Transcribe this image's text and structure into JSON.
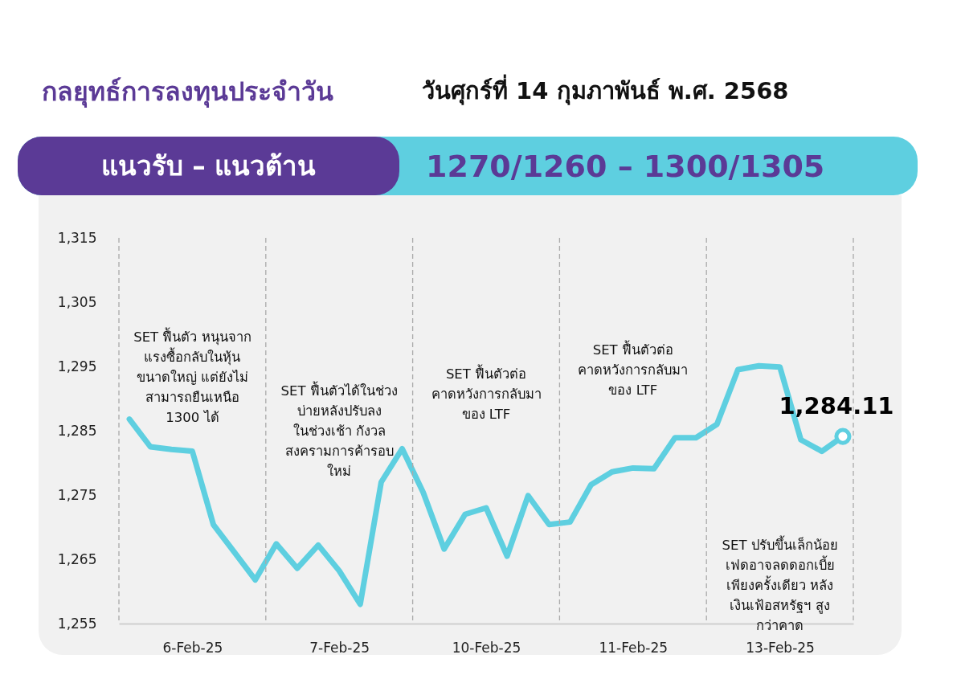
{
  "chart_data": {
    "type": "line",
    "title": "กลยุทธ์การลงทุนประจำวัน",
    "subtitle": "วันศุกร์ที่ 14 กุมภาพันธ์ พ.ศ. 2568",
    "categories": [
      null,
      null,
      null,
      "6-Feb-25",
      null,
      null,
      null,
      null,
      null,
      null,
      "7-Feb-25",
      null,
      null,
      null,
      null,
      null,
      null,
      "10-Feb-25",
      null,
      null,
      null,
      null,
      null,
      null,
      "11-Feb-25",
      null,
      null,
      null,
      null,
      null,
      null,
      "13-Feb-25",
      null,
      null,
      null
    ],
    "series": [
      {
        "color": "#5ecfe0",
        "values": [
          1286.8,
          1282.5,
          1282.1,
          1281.8,
          1270.4,
          1266.1,
          1261.8,
          1267.4,
          1263.6,
          1267.2,
          1263.2,
          1258.0,
          1277.0,
          1282.2,
          1275.4,
          1266.6,
          1272.0,
          1273.0,
          1265.5,
          1274.9,
          1270.4,
          1270.8,
          1276.6,
          1278.6,
          1279.2,
          1279.1,
          1283.9,
          1283.9,
          1286.0,
          1294.5,
          1295.1,
          1294.9,
          1283.6,
          1281.8,
          1284.11
        ]
      }
    ],
    "ylim": [
      1255,
      1315
    ],
    "yticks": [
      {
        "value": 1255,
        "label": "1,255"
      },
      {
        "value": 1265,
        "label": "1,265"
      },
      {
        "value": 1275,
        "label": "1,275"
      },
      {
        "value": 1285,
        "label": "1,285"
      },
      {
        "value": 1295,
        "label": "1,295"
      },
      {
        "value": 1305,
        "label": "1,305"
      },
      {
        "value": 1315,
        "label": "1,315"
      }
    ],
    "annotations": [
      "แนวรับ – แนวต้าน",
      "1270/1260 – 1300/1305",
      "SET ฟื้นตัว หนุนจาก\nแรงซื้อกลับในหุ้น\nขนาดใหญ่ แต่ยังไม่\nสามารถยืนเหนือ\n1300 ได้",
      "SET ฟื้นตัวได้ในช่วง\nบ่ายหลังปรับลง\nในช่วงเช้า กังวล\nสงครามการค้ารอบ\nใหม่",
      "SET ฟื้นตัวต่อ\nคาดหวังการกลับมา\nของ LTF",
      "SET ฟื้นตัวต่อ\nคาดหวังการกลับมา\nของ LTF",
      "SET ปรับขึ้นเล็กน้อย\nเฟดอาจลดดอกเบี้ย\nเพียงครั้งเดียว หลัง\nเงินเฟ้อสหรัฐฯ สูง\nกว่าคาด",
      {
        "text": "1,284.11",
        "y": 1284.11
      }
    ],
    "grid": false,
    "marker": "none",
    "line_style": "solid"
  }
}
